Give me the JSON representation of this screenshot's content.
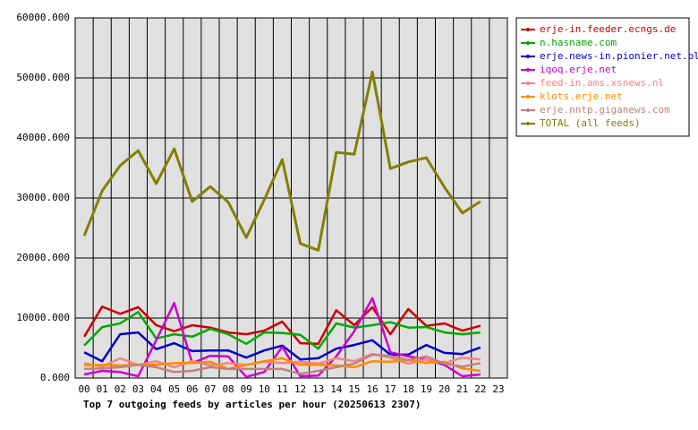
{
  "chart_data": {
    "type": "line",
    "title": "Top 7 outgoing feeds by articles per hour (20250613 2307)",
    "categories": [
      "00",
      "01",
      "02",
      "03",
      "04",
      "05",
      "06",
      "07",
      "08",
      "09",
      "10",
      "11",
      "12",
      "13",
      "14",
      "15",
      "16",
      "17",
      "18",
      "19",
      "20",
      "21",
      "22",
      "23"
    ],
    "ylim": [
      0,
      60000
    ],
    "yticks": [
      {
        "value": 0,
        "label": "0.000"
      },
      {
        "value": 10000,
        "label": "10000.000"
      },
      {
        "value": 20000,
        "label": "20000.000"
      },
      {
        "value": 30000,
        "label": "30000.000"
      },
      {
        "value": 40000,
        "label": "40000.000"
      },
      {
        "value": 50000,
        "label": "50000.000"
      },
      {
        "value": 60000,
        "label": "60000.000"
      }
    ],
    "grid": true,
    "legend": "right",
    "series": [
      {
        "name": "erje-in.feeder.ecngs.de",
        "color": "#cc0000",
        "values": [
          6900,
          11900,
          10700,
          11800,
          8800,
          7800,
          8800,
          8400,
          7600,
          7300,
          7900,
          9400,
          5800,
          5700,
          11300,
          8800,
          11800,
          7300,
          11500,
          8700,
          9100,
          7900,
          8700,
          null
        ]
      },
      {
        "name": "n.hasname.com",
        "color": "#00aa00",
        "values": [
          5400,
          8500,
          9100,
          11000,
          6600,
          7300,
          6900,
          8200,
          7300,
          5700,
          7600,
          7500,
          7200,
          4900,
          9100,
          8400,
          8800,
          9300,
          8400,
          8500,
          7600,
          7300,
          7600,
          null
        ]
      },
      {
        "name": "erje.news-in.pionier.net.pl",
        "color": "#0000cc",
        "values": [
          4300,
          2800,
          7300,
          7600,
          4800,
          5800,
          4500,
          4600,
          4600,
          3400,
          4600,
          5400,
          3100,
          3300,
          4900,
          5500,
          6300,
          3900,
          3900,
          5500,
          4200,
          4000,
          5100,
          null
        ]
      },
      {
        "name": "iqoq.erje.net",
        "color": "#cc00cc",
        "values": [
          600,
          1200,
          1000,
          300,
          6300,
          12500,
          2500,
          3700,
          3600,
          200,
          1000,
          5200,
          300,
          400,
          3600,
          7800,
          13300,
          4300,
          3600,
          3100,
          2200,
          300,
          600,
          null
        ]
      },
      {
        "name": "feed-in.ams.xsnews.nl",
        "color": "#ff8080",
        "values": [
          2500,
          1900,
          3300,
          2200,
          2800,
          1800,
          2800,
          2100,
          2500,
          2200,
          2700,
          2500,
          2700,
          2400,
          3300,
          2800,
          4000,
          3400,
          2400,
          3100,
          2500,
          3400,
          3100,
          null
        ]
      },
      {
        "name": "klots.erje.net",
        "color": "#ff8c00",
        "values": [
          2100,
          2200,
          2100,
          2200,
          2200,
          2500,
          2500,
          2700,
          1500,
          2200,
          2800,
          3300,
          2200,
          2200,
          2100,
          1800,
          2800,
          2700,
          3000,
          2500,
          2700,
          1600,
          1200,
          null
        ]
      },
      {
        "name": "erje.nntp.giganews.com",
        "color": "#c08080",
        "values": [
          1500,
          1600,
          1800,
          2200,
          1800,
          1000,
          1200,
          1800,
          1500,
          1500,
          1500,
          1500,
          700,
          1200,
          1800,
          2400,
          3900,
          3700,
          3000,
          3600,
          2400,
          1900,
          2500,
          null
        ]
      },
      {
        "name": "TOTAL (all feeds)",
        "color": "#808000",
        "values": [
          23700,
          31200,
          35400,
          37900,
          32400,
          38200,
          29400,
          31900,
          29300,
          23400,
          29700,
          36400,
          22400,
          21300,
          37600,
          37300,
          51000,
          34900,
          36000,
          36700,
          31800,
          27500,
          29400,
          null
        ]
      }
    ]
  }
}
